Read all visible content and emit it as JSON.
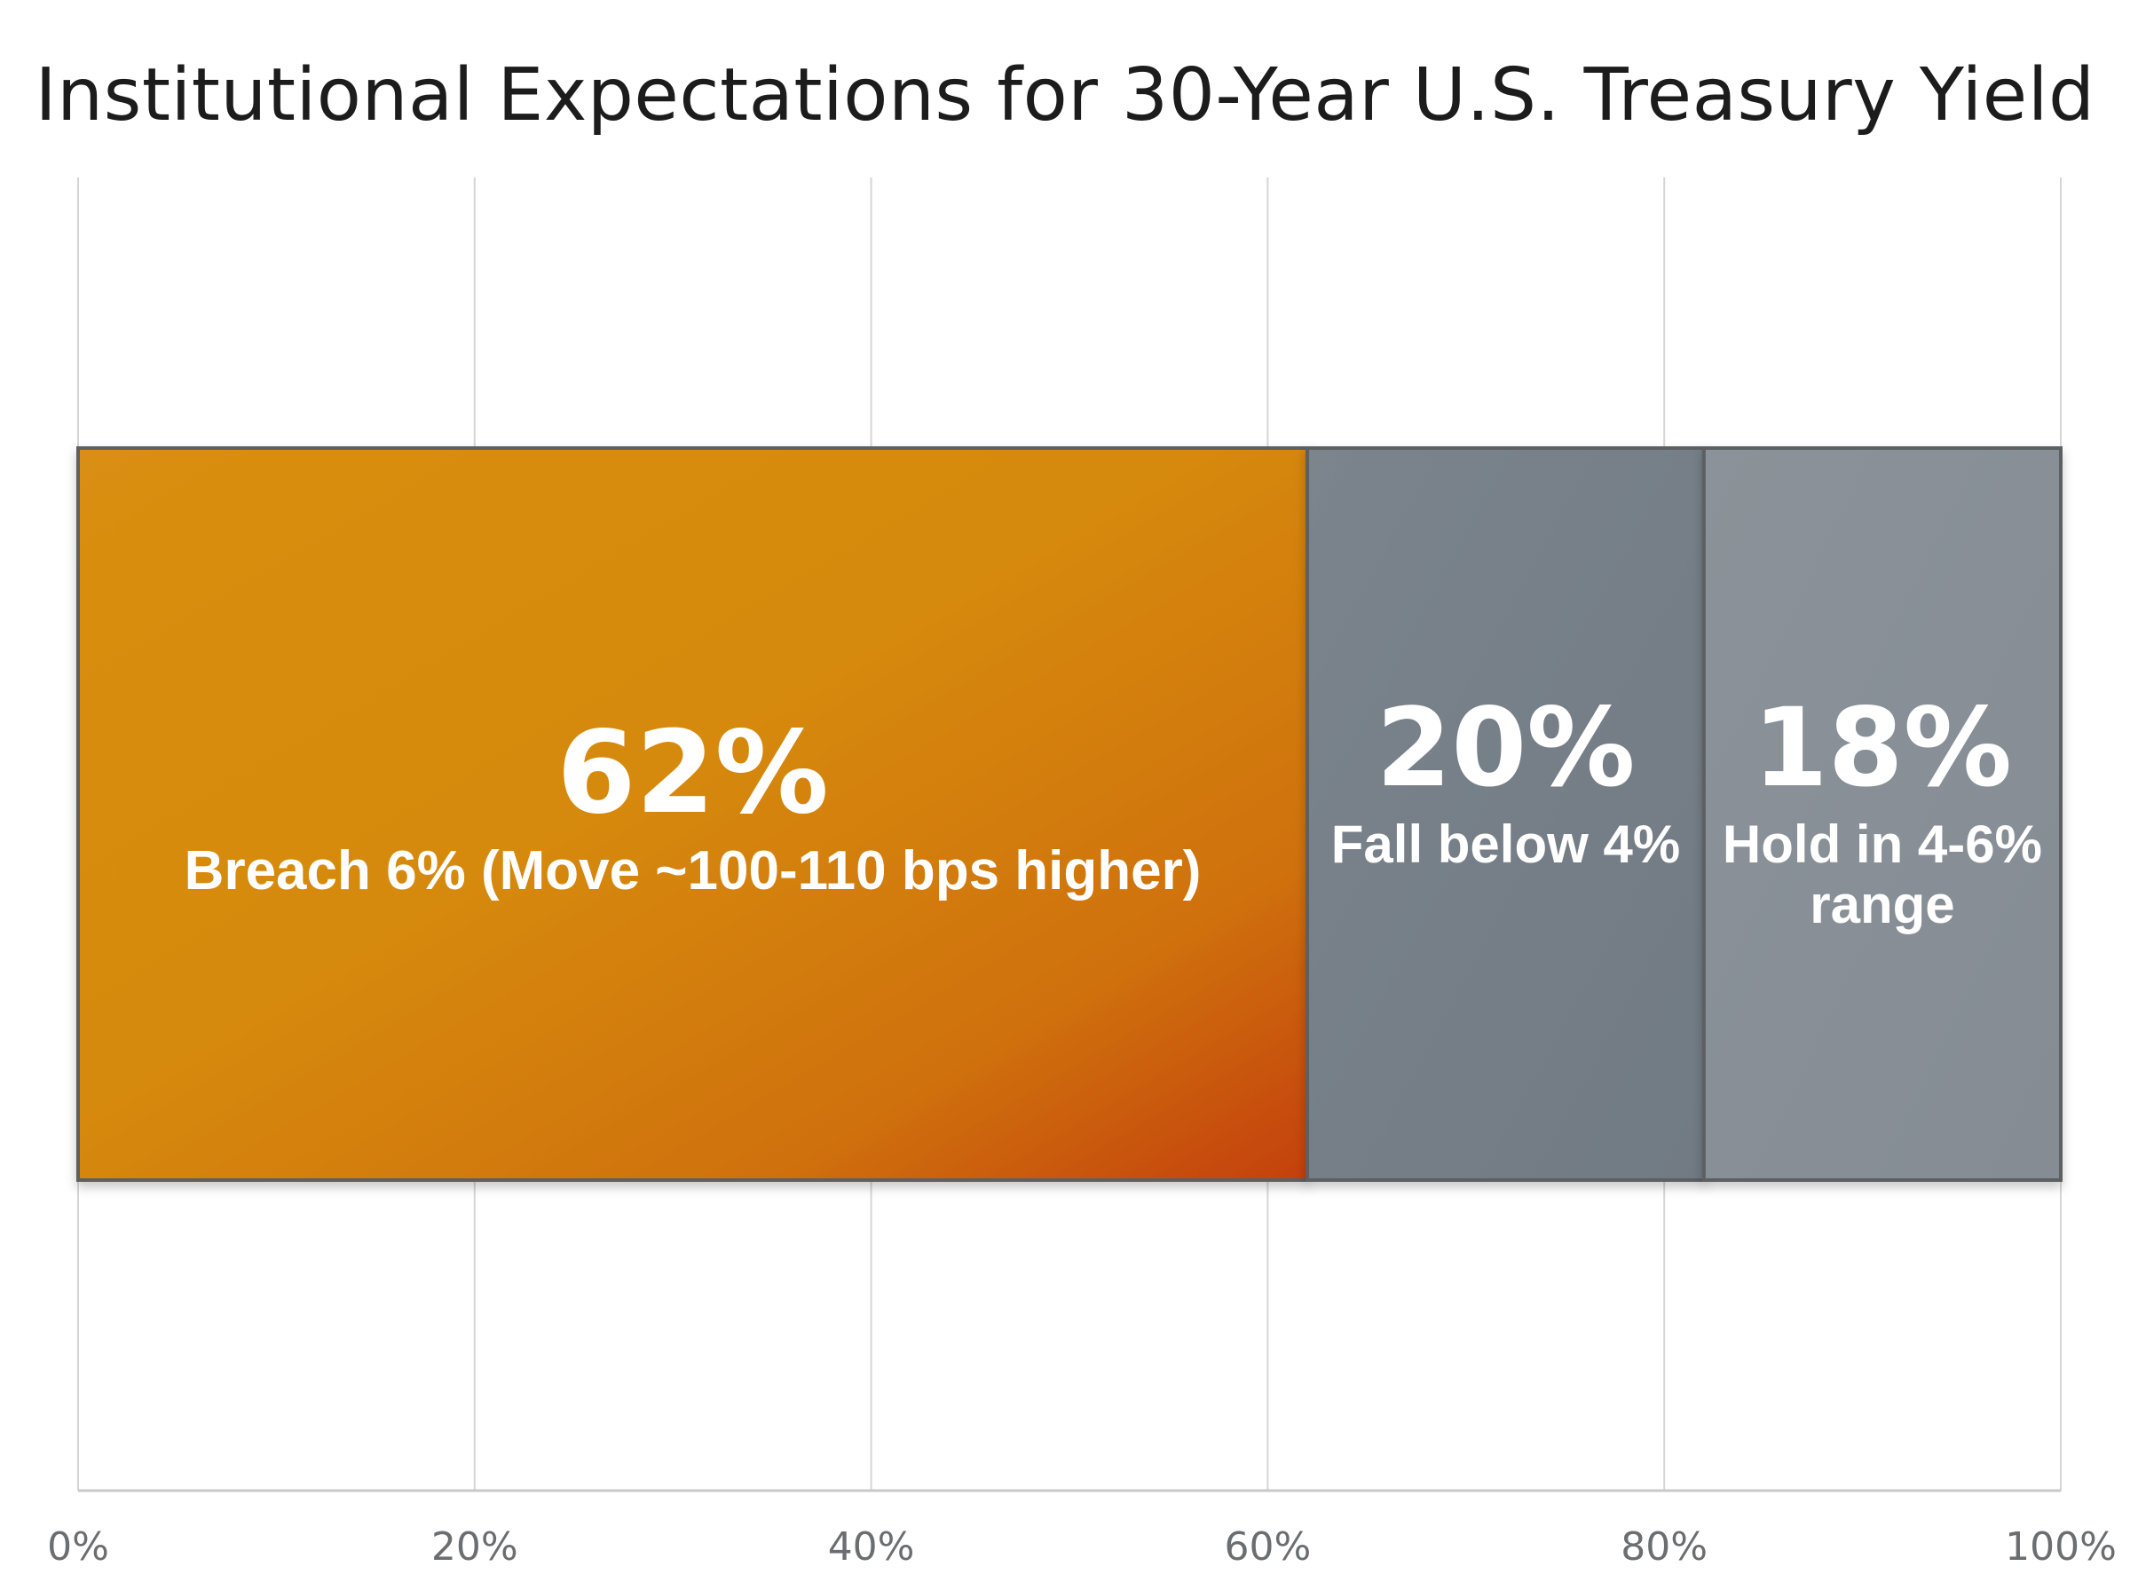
{
  "chart_data": {
    "type": "bar",
    "orientation": "horizontal",
    "stacked": true,
    "title": "Institutional Expectations for 30-Year U.S. Treasury Yield",
    "xlabel": "",
    "ylabel": "",
    "xlim": [
      0,
      100
    ],
    "x_ticks": [
      "0%",
      "20%",
      "40%",
      "60%",
      "80%",
      "100%"
    ],
    "x_tick_values": [
      0,
      20,
      40,
      60,
      80,
      100
    ],
    "grid": true,
    "series": [
      {
        "value": 62,
        "value_label": "62%",
        "label_lines": [
          "Breach 6% (Move ~100-110 bps higher)"
        ],
        "color": "#d4860f",
        "color_end": "#c8420a"
      },
      {
        "value": 20,
        "value_label": "20%",
        "label_lines": [
          "Fall below 4%"
        ],
        "color": "#778089"
      },
      {
        "value": 18,
        "value_label": "18%",
        "label_lines": [
          "Hold in 4-6%",
          "range"
        ],
        "color": "#8a9199"
      }
    ],
    "colors": {
      "grid": "#d6d6d6",
      "axis": "#c8c8c8",
      "segment_border": "#5d6063"
    }
  }
}
